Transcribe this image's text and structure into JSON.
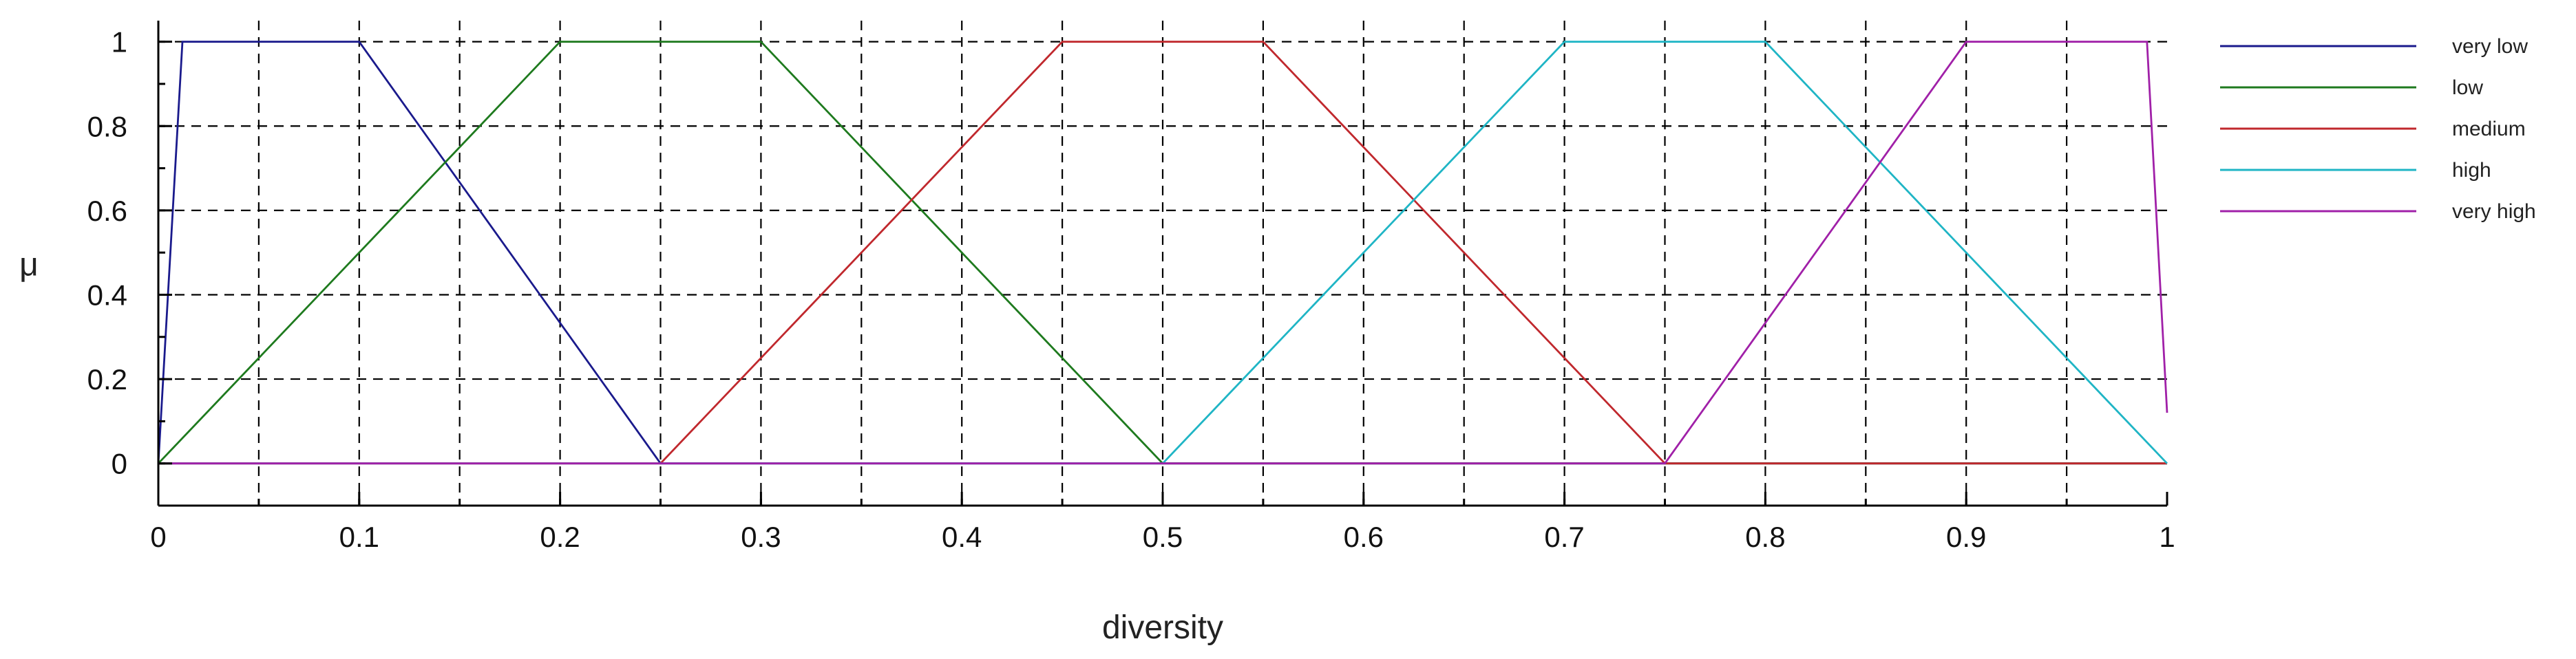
{
  "chart_data": {
    "type": "line",
    "title": "",
    "xlabel": "diversity",
    "ylabel": "μ",
    "xlim": [
      0,
      1
    ],
    "ylim": [
      -0.1,
      1.05
    ],
    "x_ticks": [
      0,
      0.1,
      0.2,
      0.3,
      0.4,
      0.5,
      0.6,
      0.7,
      0.8,
      0.9,
      1
    ],
    "x_tick_labels": [
      "0",
      "0.1",
      "0.2",
      "0.3",
      "0.4",
      "0.5",
      "0.6",
      "0.7",
      "0.8",
      "0.9",
      "1"
    ],
    "x_grid": [
      0.05,
      0.1,
      0.15,
      0.2,
      0.25,
      0.3,
      0.35,
      0.4,
      0.45,
      0.5,
      0.55,
      0.6,
      0.65,
      0.7,
      0.75,
      0.8,
      0.85,
      0.9,
      0.95
    ],
    "y_ticks": [
      0,
      0.2,
      0.4,
      0.6,
      0.8,
      1
    ],
    "y_tick_labels": [
      "0",
      "0.2",
      "0.4",
      "0.6",
      "0.8",
      "1"
    ],
    "grid": true,
    "legend_position": "right",
    "series": [
      {
        "name": "very low",
        "color": "#1a1a8c",
        "x": [
          0,
          0.012,
          0.1,
          0.25,
          1
        ],
        "y": [
          0,
          1,
          1,
          0,
          0
        ]
      },
      {
        "name": "low",
        "color": "#1e7a1e",
        "x": [
          0,
          0.2,
          0.3,
          0.5,
          1
        ],
        "y": [
          0,
          1,
          1,
          0,
          0
        ]
      },
      {
        "name": "medium",
        "color": "#c0282d",
        "x": [
          0,
          0.25,
          0.45,
          0.55,
          0.75,
          1
        ],
        "y": [
          0,
          0,
          1,
          1,
          0,
          0
        ]
      },
      {
        "name": "high",
        "color": "#1fb5c5",
        "x": [
          0,
          0.5,
          0.7,
          0.8,
          1
        ],
        "y": [
          0,
          0,
          1,
          1,
          0
        ]
      },
      {
        "name": "very high",
        "color": "#a020a8",
        "x": [
          0,
          0.75,
          0.9,
          0.99,
          1
        ],
        "y": [
          0,
          0,
          1,
          1,
          0.12
        ]
      }
    ]
  }
}
